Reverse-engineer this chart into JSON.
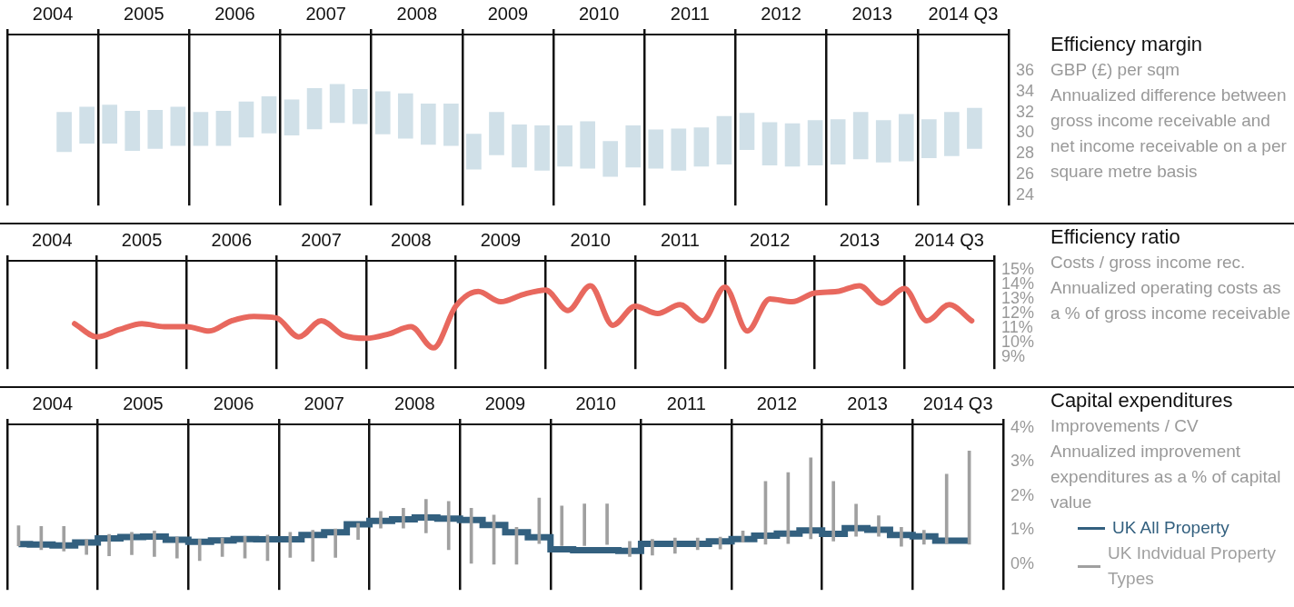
{
  "chart_data": [
    {
      "type": "bar",
      "ylabel": "GBP (£) per sqm",
      "annotations": [
        "Efficiency margin",
        "Annualized difference between gross income receivable and net income receivable on a per square metre basis"
      ],
      "x": [
        2004.625,
        2004.875,
        2005.125,
        2005.375,
        2005.625,
        2005.875,
        2006.125,
        2006.375,
        2006.625,
        2006.875,
        2007.125,
        2007.375,
        2007.625,
        2007.875,
        2008.125,
        2008.375,
        2008.625,
        2008.875,
        2009.125,
        2009.375,
        2009.625,
        2009.875,
        2010.125,
        2010.375,
        2010.625,
        2010.875,
        2011.125,
        2011.375,
        2011.625,
        2011.875,
        2012.125,
        2012.375,
        2012.625,
        2012.875,
        2013.125,
        2013.375,
        2013.625,
        2013.875,
        2014.125,
        2014.375,
        2014.625
      ],
      "base": [
        28.2,
        29.0,
        29.0,
        28.3,
        28.5,
        28.8,
        28.8,
        28.8,
        29.6,
        30.0,
        29.8,
        30.4,
        31.0,
        30.9,
        29.9,
        29.5,
        28.9,
        28.8,
        26.5,
        27.9,
        26.7,
        26.4,
        26.8,
        26.6,
        25.8,
        26.7,
        26.6,
        26.4,
        26.8,
        27.0,
        28.4,
        26.9,
        26.8,
        26.9,
        27.0,
        27.5,
        27.2,
        27.3,
        27.6,
        27.8,
        28.5
      ],
      "values": [
        3.8,
        3.5,
        3.7,
        3.8,
        3.7,
        3.7,
        3.2,
        3.3,
        3.4,
        3.5,
        3.4,
        3.9,
        3.7,
        3.3,
        4.1,
        4.3,
        3.9,
        4.0,
        3.4,
        4.1,
        4.1,
        4.3,
        3.9,
        4.5,
        3.4,
        4.0,
        3.7,
        4.0,
        3.7,
        4.6,
        3.5,
        4.1,
        4.1,
        4.3,
        4.3,
        4.5,
        4.0,
        4.5,
        3.7,
        4.2,
        3.9
      ],
      "color": "#d0e0e8",
      "xlim": [
        2004,
        2015
      ],
      "xticks": [
        {
          "value": 2004,
          "label": null
        },
        {
          "value": 2004.5,
          "label": "2004"
        },
        {
          "value": 2005,
          "label": null
        },
        {
          "value": 2005.5,
          "label": "2005"
        },
        {
          "value": 2006,
          "label": null
        },
        {
          "value": 2006.5,
          "label": "2006"
        },
        {
          "value": 2007,
          "label": null
        },
        {
          "value": 2007.5,
          "label": "2007"
        },
        {
          "value": 2008,
          "label": null
        },
        {
          "value": 2008.5,
          "label": "2008"
        },
        {
          "value": 2009,
          "label": null
        },
        {
          "value": 2009.5,
          "label": "2009"
        },
        {
          "value": 2010,
          "label": null
        },
        {
          "value": 2010.5,
          "label": "2010"
        },
        {
          "value": 2011,
          "label": null
        },
        {
          "value": 2011.5,
          "label": "2011"
        },
        {
          "value": 2012,
          "label": null
        },
        {
          "value": 2012.5,
          "label": "2012"
        },
        {
          "value": 2013,
          "label": null
        },
        {
          "value": 2013.5,
          "label": "2013"
        },
        {
          "value": 2014,
          "label": null
        },
        {
          "value": 2014.5,
          "label": "2014 Q3"
        },
        {
          "value": 2015,
          "label": null
        }
      ],
      "ylim": [
        23,
        39.5
      ],
      "yticks": [
        24,
        26,
        28,
        30,
        32,
        34,
        36
      ],
      "grid": "x"
    },
    {
      "type": "line",
      "ylabel": "Costs / gross income rec.",
      "annotations": [
        "Efficiency ratio",
        "Annualized operating costs as a % of gross income receivable"
      ],
      "x": [
        2004.75,
        2005.0,
        2005.25,
        2005.5,
        2005.75,
        2006.0,
        2006.25,
        2006.5,
        2006.75,
        2007.0,
        2007.25,
        2007.5,
        2007.75,
        2008.0,
        2008.25,
        2008.5,
        2008.75,
        2009.0,
        2009.25,
        2009.5,
        2009.75,
        2010.0,
        2010.25,
        2010.5,
        2010.75,
        2011.0,
        2011.25,
        2011.5,
        2011.75,
        2012.0,
        2012.25,
        2012.5,
        2012.75,
        2013.0,
        2013.25,
        2013.5,
        2013.75,
        2014.0,
        2014.25,
        2014.5,
        2014.75
      ],
      "values": [
        11.3,
        10.4,
        10.9,
        11.3,
        11.1,
        11.1,
        10.8,
        11.5,
        11.8,
        11.7,
        10.4,
        11.5,
        10.5,
        10.3,
        10.6,
        11.1,
        9.65,
        12.5,
        13.5,
        12.8,
        13.3,
        13.6,
        12.2,
        13.9,
        11.2,
        12.5,
        12.0,
        12.6,
        11.5,
        13.8,
        10.8,
        13.0,
        12.8,
        13.4,
        13.5,
        13.9,
        12.7,
        13.7,
        11.5,
        12.6,
        11.5
      ],
      "color": "#e8685e",
      "xlim": [
        2004,
        2015
      ],
      "xticks": [
        {
          "value": 2004,
          "label": null
        },
        {
          "value": 2004.5,
          "label": "2004"
        },
        {
          "value": 2005,
          "label": null
        },
        {
          "value": 2005.5,
          "label": "2005"
        },
        {
          "value": 2006,
          "label": null
        },
        {
          "value": 2006.5,
          "label": "2006"
        },
        {
          "value": 2007,
          "label": null
        },
        {
          "value": 2007.5,
          "label": "2007"
        },
        {
          "value": 2008,
          "label": null
        },
        {
          "value": 2008.5,
          "label": "2008"
        },
        {
          "value": 2009,
          "label": null
        },
        {
          "value": 2009.5,
          "label": "2009"
        },
        {
          "value": 2010,
          "label": null
        },
        {
          "value": 2010.5,
          "label": "2010"
        },
        {
          "value": 2011,
          "label": null
        },
        {
          "value": 2011.5,
          "label": "2011"
        },
        {
          "value": 2012,
          "label": null
        },
        {
          "value": 2012.5,
          "label": "2012"
        },
        {
          "value": 2013,
          "label": null
        },
        {
          "value": 2013.5,
          "label": "2013"
        },
        {
          "value": 2014,
          "label": null
        },
        {
          "value": 2014.5,
          "label": "2014 Q3"
        },
        {
          "value": 2015,
          "label": null
        }
      ],
      "ylim": [
        8.2,
        15.6
      ],
      "yticks": [
        {
          "value": 9,
          "label": "9%"
        },
        {
          "value": 10,
          "label": "10%"
        },
        {
          "value": 11,
          "label": "11%"
        },
        {
          "value": 12,
          "label": "12%"
        },
        {
          "value": 13,
          "label": "13%"
        },
        {
          "value": 14,
          "label": "14%"
        },
        {
          "value": 15,
          "label": "15%"
        }
      ],
      "grid": "x"
    },
    {
      "type": "step",
      "ylabel": "Improvements / CV",
      "annotations": [
        "Capital expenditures",
        "Annualized improvement expenditures as a % of capital value"
      ],
      "x": [
        2004.125,
        2004.375,
        2004.625,
        2004.875,
        2005.125,
        2005.375,
        2005.625,
        2005.875,
        2006.125,
        2006.375,
        2006.625,
        2006.875,
        2007.125,
        2007.375,
        2007.625,
        2007.875,
        2008.125,
        2008.375,
        2008.625,
        2008.875,
        2009.125,
        2009.375,
        2009.625,
        2009.875,
        2010.125,
        2010.375,
        2010.625,
        2010.875,
        2011.125,
        2011.375,
        2011.625,
        2011.875,
        2012.125,
        2012.375,
        2012.625,
        2012.875,
        2013.125,
        2013.375,
        2013.625,
        2013.875,
        2014.125,
        2014.375,
        2014.625
      ],
      "series": [
        {
          "name": "UK All Property",
          "type": "step",
          "color": "#33607f",
          "values": [
            0.59,
            0.58,
            0.55,
            0.64,
            0.76,
            0.8,
            0.81,
            0.72,
            0.66,
            0.7,
            0.74,
            0.73,
            0.73,
            0.86,
            0.94,
            1.17,
            1.27,
            1.32,
            1.37,
            1.34,
            1.3,
            1.15,
            0.94,
            0.79,
            0.44,
            0.41,
            0.41,
            0.39,
            0.6,
            0.6,
            0.6,
            0.67,
            0.74,
            0.84,
            0.9,
            0.99,
            0.89,
            1.06,
            1.01,
            0.86,
            0.82,
            0.69,
            0.69
          ]
        },
        {
          "name": "UK Indvidual Property Types",
          "type": "bar",
          "color": "#a0a0a0",
          "base": [
            0.54,
            0.43,
            0.39,
            0.29,
            0.25,
            0.28,
            0.23,
            0.18,
            0.11,
            0.23,
            0.18,
            0.11,
            0.2,
            0.09,
            0.2,
            0.73,
            1.06,
            1.06,
            0.92,
            0.43,
            0.03,
            0.0,
            0.0,
            0.61,
            0.55,
            0.55,
            0.58,
            0.23,
            0.27,
            0.32,
            0.43,
            0.45,
            0.65,
            0.59,
            0.61,
            0.75,
            0.68,
            0.82,
            0.82,
            0.53,
            0.59,
            0.61,
            0.59
          ],
          "values": [
            0.59,
            0.68,
            0.72,
            0.44,
            0.63,
            0.66,
            0.75,
            0.62,
            0.62,
            0.54,
            0.64,
            0.75,
            0.74,
            0.91,
            0.84,
            0.47,
            0.49,
            0.58,
            0.98,
            1.41,
            1.61,
            1.44,
            1.08,
            1.33,
            1.16,
            1.22,
            1.19,
            0.44,
            0.46,
            0.45,
            0.34,
            0.35,
            0.33,
            1.84,
            2.08,
            2.37,
            1.75,
            0.94,
            0.6,
            0.55,
            0.41,
            2.03,
            2.73
          ]
        }
      ],
      "xlim": [
        2004,
        2015
      ],
      "xticks": [
        {
          "value": 2004,
          "label": null
        },
        {
          "value": 2004.5,
          "label": "2004"
        },
        {
          "value": 2005,
          "label": null
        },
        {
          "value": 2005.5,
          "label": "2005"
        },
        {
          "value": 2006,
          "label": null
        },
        {
          "value": 2006.5,
          "label": "2006"
        },
        {
          "value": 2007,
          "label": null
        },
        {
          "value": 2007.5,
          "label": "2007"
        },
        {
          "value": 2008,
          "label": null
        },
        {
          "value": 2008.5,
          "label": "2008"
        },
        {
          "value": 2009,
          "label": null
        },
        {
          "value": 2009.5,
          "label": "2009"
        },
        {
          "value": 2010,
          "label": null
        },
        {
          "value": 2010.5,
          "label": "2010"
        },
        {
          "value": 2011,
          "label": null
        },
        {
          "value": 2011.5,
          "label": "2011"
        },
        {
          "value": 2012,
          "label": null
        },
        {
          "value": 2012.5,
          "label": "2012"
        },
        {
          "value": 2013,
          "label": null
        },
        {
          "value": 2013.5,
          "label": "2013"
        },
        {
          "value": 2014,
          "label": null
        },
        {
          "value": 2014.5,
          "label": "2014 Q3"
        },
        {
          "value": 2015,
          "label": null
        }
      ],
      "ylim": [
        -0.75,
        4.1
      ],
      "yticks": [
        {
          "value": 0,
          "label": "0%"
        },
        {
          "value": 1,
          "label": "1%"
        },
        {
          "value": 2,
          "label": "2%"
        },
        {
          "value": 3,
          "label": "3%"
        },
        {
          "value": 4,
          "label": "4%"
        }
      ],
      "grid": "x",
      "legend": "right"
    }
  ]
}
